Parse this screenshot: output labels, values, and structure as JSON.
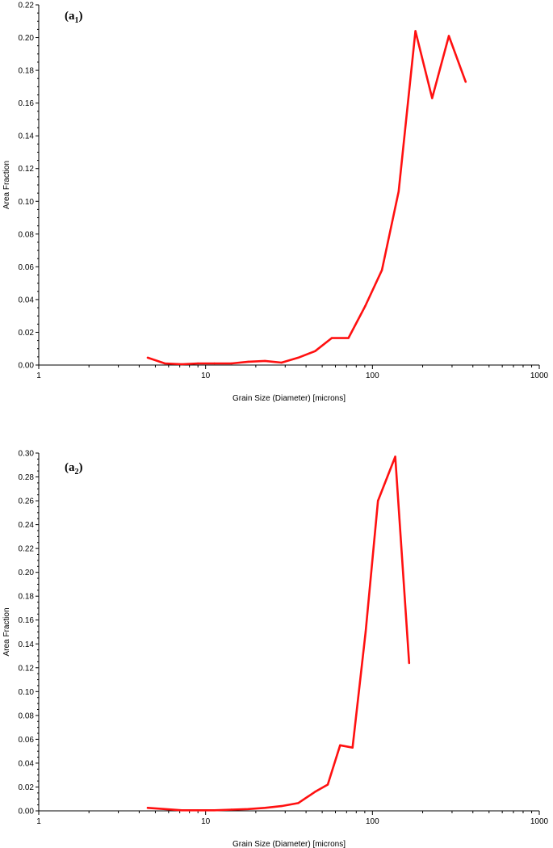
{
  "chart_data": [
    {
      "type": "line",
      "panel_label": "(a",
      "panel_subscript": "1",
      "panel_close": ")",
      "xlabel": "Grain Size (Diameter) [microns]",
      "ylabel": "Area Fraction",
      "x_scale": "log",
      "xlim": [
        1,
        1000
      ],
      "ylim": [
        0,
        0.22
      ],
      "x_ticks": [
        1,
        10,
        100,
        1000
      ],
      "x_tick_labels": [
        "1",
        "10",
        "100",
        "1000"
      ],
      "y_ticks": [
        0,
        0.02,
        0.04,
        0.06,
        0.08,
        0.1,
        0.12,
        0.14,
        0.16,
        0.18,
        0.2,
        0.22
      ],
      "y_tick_labels": [
        "0.00",
        "0.02",
        "0.04",
        "0.06",
        "0.08",
        "0.10",
        "0.12",
        "0.14",
        "0.16",
        "0.18",
        "0.20",
        "0.22"
      ],
      "line_color": "#ff1010",
      "x": [
        4.5,
        5.7,
        7.2,
        9.0,
        11.3,
        14.3,
        18.0,
        22.7,
        28.5,
        35.9,
        45.3,
        57.0,
        71.8,
        90.5,
        114.0,
        143.6,
        181.0,
        228.0,
        287.0,
        362.0
      ],
      "y": [
        0.0045,
        0.001,
        0.0005,
        0.001,
        0.001,
        0.001,
        0.002,
        0.0025,
        0.0015,
        0.0045,
        0.0085,
        0.0165,
        0.0165,
        0.036,
        0.058,
        0.106,
        0.204,
        0.163,
        0.201,
        0.173
      ]
    },
    {
      "type": "line",
      "panel_label": "(a",
      "panel_subscript": "2",
      "panel_close": ")",
      "xlabel": "Grain Size (Diameter) [microns]",
      "ylabel": "Area Fraction",
      "x_scale": "log",
      "xlim": [
        1,
        1000
      ],
      "ylim": [
        0,
        0.3
      ],
      "x_ticks": [
        1,
        10,
        100,
        1000
      ],
      "x_tick_labels": [
        "1",
        "10",
        "100",
        "1000"
      ],
      "y_ticks": [
        0,
        0.02,
        0.04,
        0.06,
        0.08,
        0.1,
        0.12,
        0.14,
        0.16,
        0.18,
        0.2,
        0.22,
        0.24,
        0.26,
        0.28,
        0.3
      ],
      "y_tick_labels": [
        "0.00",
        "0.02",
        "0.04",
        "0.06",
        "0.08",
        "0.10",
        "0.12",
        "0.14",
        "0.16",
        "0.18",
        "0.20",
        "0.22",
        "0.24",
        "0.26",
        "0.28",
        "0.30"
      ],
      "line_color": "#ff1010",
      "x": [
        4.5,
        5.7,
        7.2,
        9.0,
        11.3,
        14.3,
        18.0,
        22.7,
        28.5,
        35.9,
        45.3,
        54.0,
        64.0,
        76.0,
        91.0,
        108.0,
        137.0,
        166.0
      ],
      "y": [
        0.0025,
        0.0015,
        0.0005,
        0.0005,
        0.0005,
        0.001,
        0.0015,
        0.0025,
        0.004,
        0.0065,
        0.016,
        0.022,
        0.055,
        0.053,
        0.15,
        0.26,
        0.297,
        0.124
      ]
    }
  ]
}
